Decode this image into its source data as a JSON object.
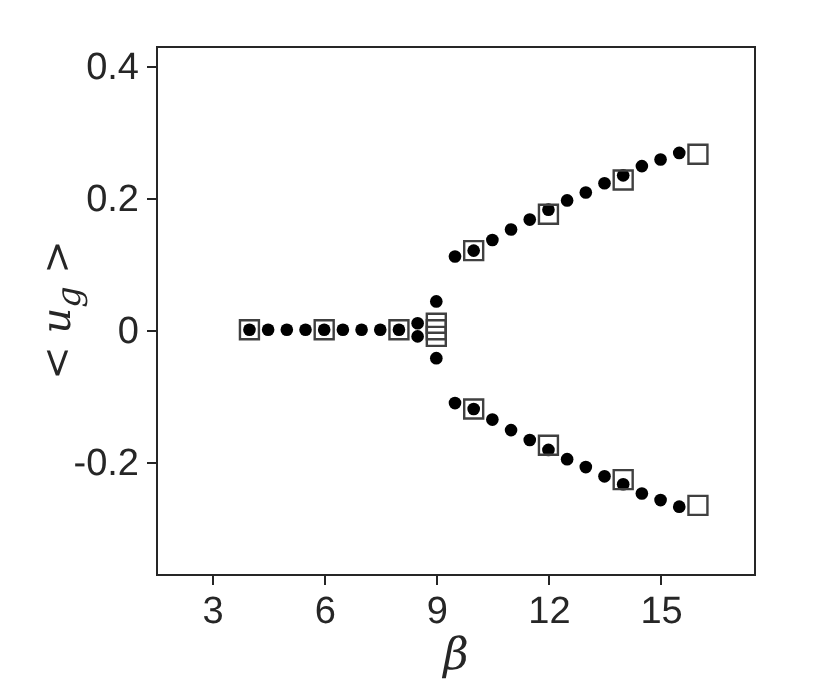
{
  "chart_data": {
    "type": "scatter",
    "xlabel": "β",
    "ylabel": "< u$_{g}$ >",
    "xlim": [
      1.5,
      17.5
    ],
    "ylim": [
      -0.37,
      0.43
    ],
    "xticks": [
      3,
      6,
      9,
      12,
      15
    ],
    "yticks": [
      -0.2,
      0,
      0.2,
      0.4
    ],
    "grid": false,
    "series": [
      {
        "color": "#000000",
        "marker": "circle",
        "x": [
          4,
          4.5,
          5,
          5.5,
          6,
          6.5,
          7,
          7.5,
          8,
          8.5,
          8.5,
          9,
          9,
          9.5,
          10,
          10.5,
          11,
          11.5,
          12,
          12.5,
          13,
          13.5,
          14,
          14.5,
          15,
          15.5,
          9.5,
          10,
          10.5,
          11,
          11.5,
          12,
          12.5,
          13,
          13.5,
          14,
          14.5,
          15,
          15.5
        ],
        "values": [
          0,
          0,
          0,
          0,
          0,
          0,
          0,
          0,
          0,
          0.01,
          -0.01,
          0.043,
          -0.043,
          0.111,
          0.12,
          0.136,
          0.152,
          0.167,
          0.182,
          0.196,
          0.208,
          0.222,
          0.234,
          0.248,
          0.258,
          0.268,
          -0.111,
          -0.12,
          -0.136,
          -0.152,
          -0.167,
          -0.182,
          -0.196,
          -0.208,
          -0.222,
          -0.234,
          -0.248,
          -0.258,
          -0.268
        ]
      },
      {
        "color": "#404040",
        "marker": "square",
        "x": [
          4,
          6,
          8,
          9,
          9,
          9,
          10,
          12,
          14,
          16,
          10,
          12,
          14,
          16
        ],
        "values": [
          0,
          0,
          0,
          0.01,
          0,
          -0.01,
          0.12,
          0.175,
          0.227,
          0.266,
          -0.12,
          -0.175,
          -0.227,
          -0.266
        ]
      }
    ]
  }
}
